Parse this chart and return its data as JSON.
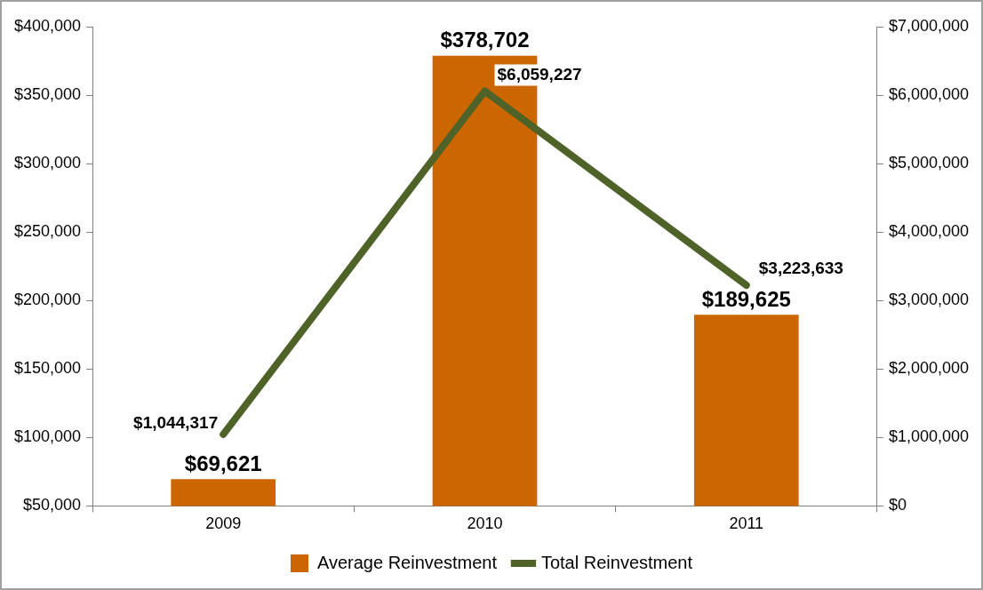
{
  "chart_data": {
    "type": "bar",
    "categories": [
      "2009",
      "2010",
      "2011"
    ],
    "series": [
      {
        "name": "Average Reinvestment",
        "color": "#cc6600",
        "values": [
          69621,
          378702,
          189625
        ],
        "value_labels": [
          "$69,621",
          "$378,702",
          "$189,625"
        ]
      },
      {
        "name": "Total Reinvestment",
        "type": "line",
        "axis": "y2",
        "color": "#4f6228",
        "values": [
          1044317,
          6059227,
          3223633
        ],
        "value_labels": [
          "$1,044,317",
          "$6,059,227",
          "$3,223,633"
        ]
      }
    ],
    "ylim": [
      50000,
      400000
    ],
    "yticks": [
      {
        "value": 50000,
        "label": "$50,000"
      },
      {
        "value": 100000,
        "label": "$100,000"
      },
      {
        "value": 150000,
        "label": "$150,000"
      },
      {
        "value": 200000,
        "label": "$200,000"
      },
      {
        "value": 250000,
        "label": "$250,000"
      },
      {
        "value": 300000,
        "label": "$300,000"
      },
      {
        "value": 350000,
        "label": "$350,000"
      },
      {
        "value": 400000,
        "label": "$400,000"
      }
    ],
    "y2lim": [
      0,
      7000000
    ],
    "y2ticks": [
      {
        "value": 0,
        "label": "$0"
      },
      {
        "value": 1000000,
        "label": "$1,000,000"
      },
      {
        "value": 2000000,
        "label": "$2,000,000"
      },
      {
        "value": 3000000,
        "label": "$3,000,000"
      },
      {
        "value": 4000000,
        "label": "$4,000,000"
      },
      {
        "value": 5000000,
        "label": "$5,000,000"
      },
      {
        "value": 6000000,
        "label": "$6,000,000"
      },
      {
        "value": 7000000,
        "label": "$7,000,000"
      }
    ],
    "grid": false,
    "legend": "bottom",
    "marker": "none",
    "line_style": "solid"
  }
}
